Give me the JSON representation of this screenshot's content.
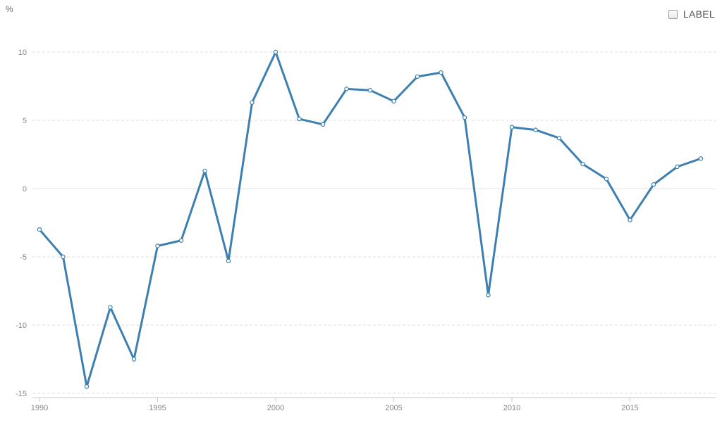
{
  "chart_data": {
    "type": "line",
    "title": "",
    "xlabel": "",
    "ylabel": "%",
    "x": [
      1990,
      1991,
      1992,
      1993,
      1994,
      1995,
      1996,
      1997,
      1998,
      1999,
      2000,
      2001,
      2002,
      2003,
      2004,
      2005,
      2006,
      2007,
      2008,
      2009,
      2010,
      2011,
      2012,
      2013,
      2014,
      2015,
      2016,
      2017,
      2018
    ],
    "series": [
      {
        "values": [
          -3.0,
          -5.0,
          -14.5,
          -8.7,
          -12.5,
          -4.2,
          -3.8,
          1.3,
          -5.3,
          6.3,
          10.0,
          5.1,
          4.7,
          7.3,
          7.2,
          6.4,
          8.2,
          8.5,
          5.2,
          -7.8,
          4.5,
          4.3,
          3.7,
          1.8,
          0.7,
          -2.3,
          0.3,
          1.6,
          2.2
        ],
        "color": "#3d7fb0"
      }
    ],
    "xlim": [
      1990,
      2018
    ],
    "ylim": [
      -15,
      10
    ],
    "yticks": [
      10,
      5,
      0,
      -5,
      -10,
      -15
    ],
    "xticks": [
      1990,
      1995,
      2000,
      2005,
      2010,
      2015
    ],
    "grid": true
  },
  "legend_toggle": {
    "label": "LABEL",
    "checked": false
  },
  "colors": {
    "line": "#3d7fb0",
    "grid": "#dddddd",
    "tick_text": "#888888"
  }
}
